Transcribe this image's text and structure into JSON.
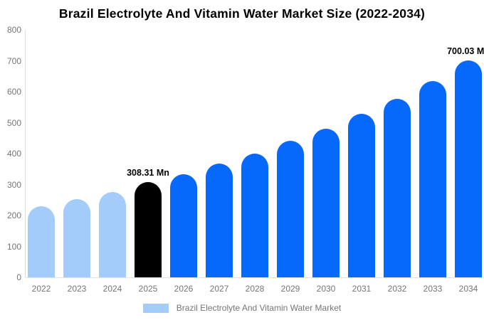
{
  "title": "Brazil Electrolyte And Vitamin Water Market Size (2022-2034)",
  "legend": {
    "label": "Brazil Electrolyte And Vitamin Water Market"
  },
  "colors": {
    "historical_bar": "#A4CCFA",
    "base_year_bar": "#000000",
    "forecast_bar": "#0768FC",
    "axis_text": "#757575",
    "axis_line": "#DDDDDD",
    "annotation_text": "#000000",
    "title_text": "#000000",
    "background": "#FFFFFF"
  },
  "chart_data": {
    "type": "bar",
    "title": "Brazil Electrolyte And Vitamin Water Market Size (2022-2034)",
    "unit": "Mn",
    "categories": [
      "2022",
      "2023",
      "2024",
      "2025",
      "2026",
      "2027",
      "2028",
      "2029",
      "2030",
      "2031",
      "2032",
      "2033",
      "2034"
    ],
    "values": [
      230,
      253,
      277,
      308.31,
      334,
      367,
      401,
      441,
      480,
      528,
      576,
      634,
      700.03
    ],
    "bar_roles": [
      "historical",
      "historical",
      "historical",
      "base_year",
      "forecast",
      "forecast",
      "forecast",
      "forecast",
      "forecast",
      "forecast",
      "forecast",
      "forecast",
      "forecast"
    ],
    "annotations": [
      {
        "category": "2025",
        "text": "308.31 Mn"
      },
      {
        "category": "2034",
        "text": "700.03 Mn"
      }
    ],
    "ylim": [
      0,
      800
    ],
    "yticks": [
      0,
      100,
      200,
      300,
      400,
      500,
      600,
      700,
      800
    ],
    "xlabel": "",
    "ylabel": "",
    "grid": false,
    "legend": [
      "Brazil Electrolyte And Vitamin Water Market"
    ],
    "legend_position": "bottom"
  }
}
